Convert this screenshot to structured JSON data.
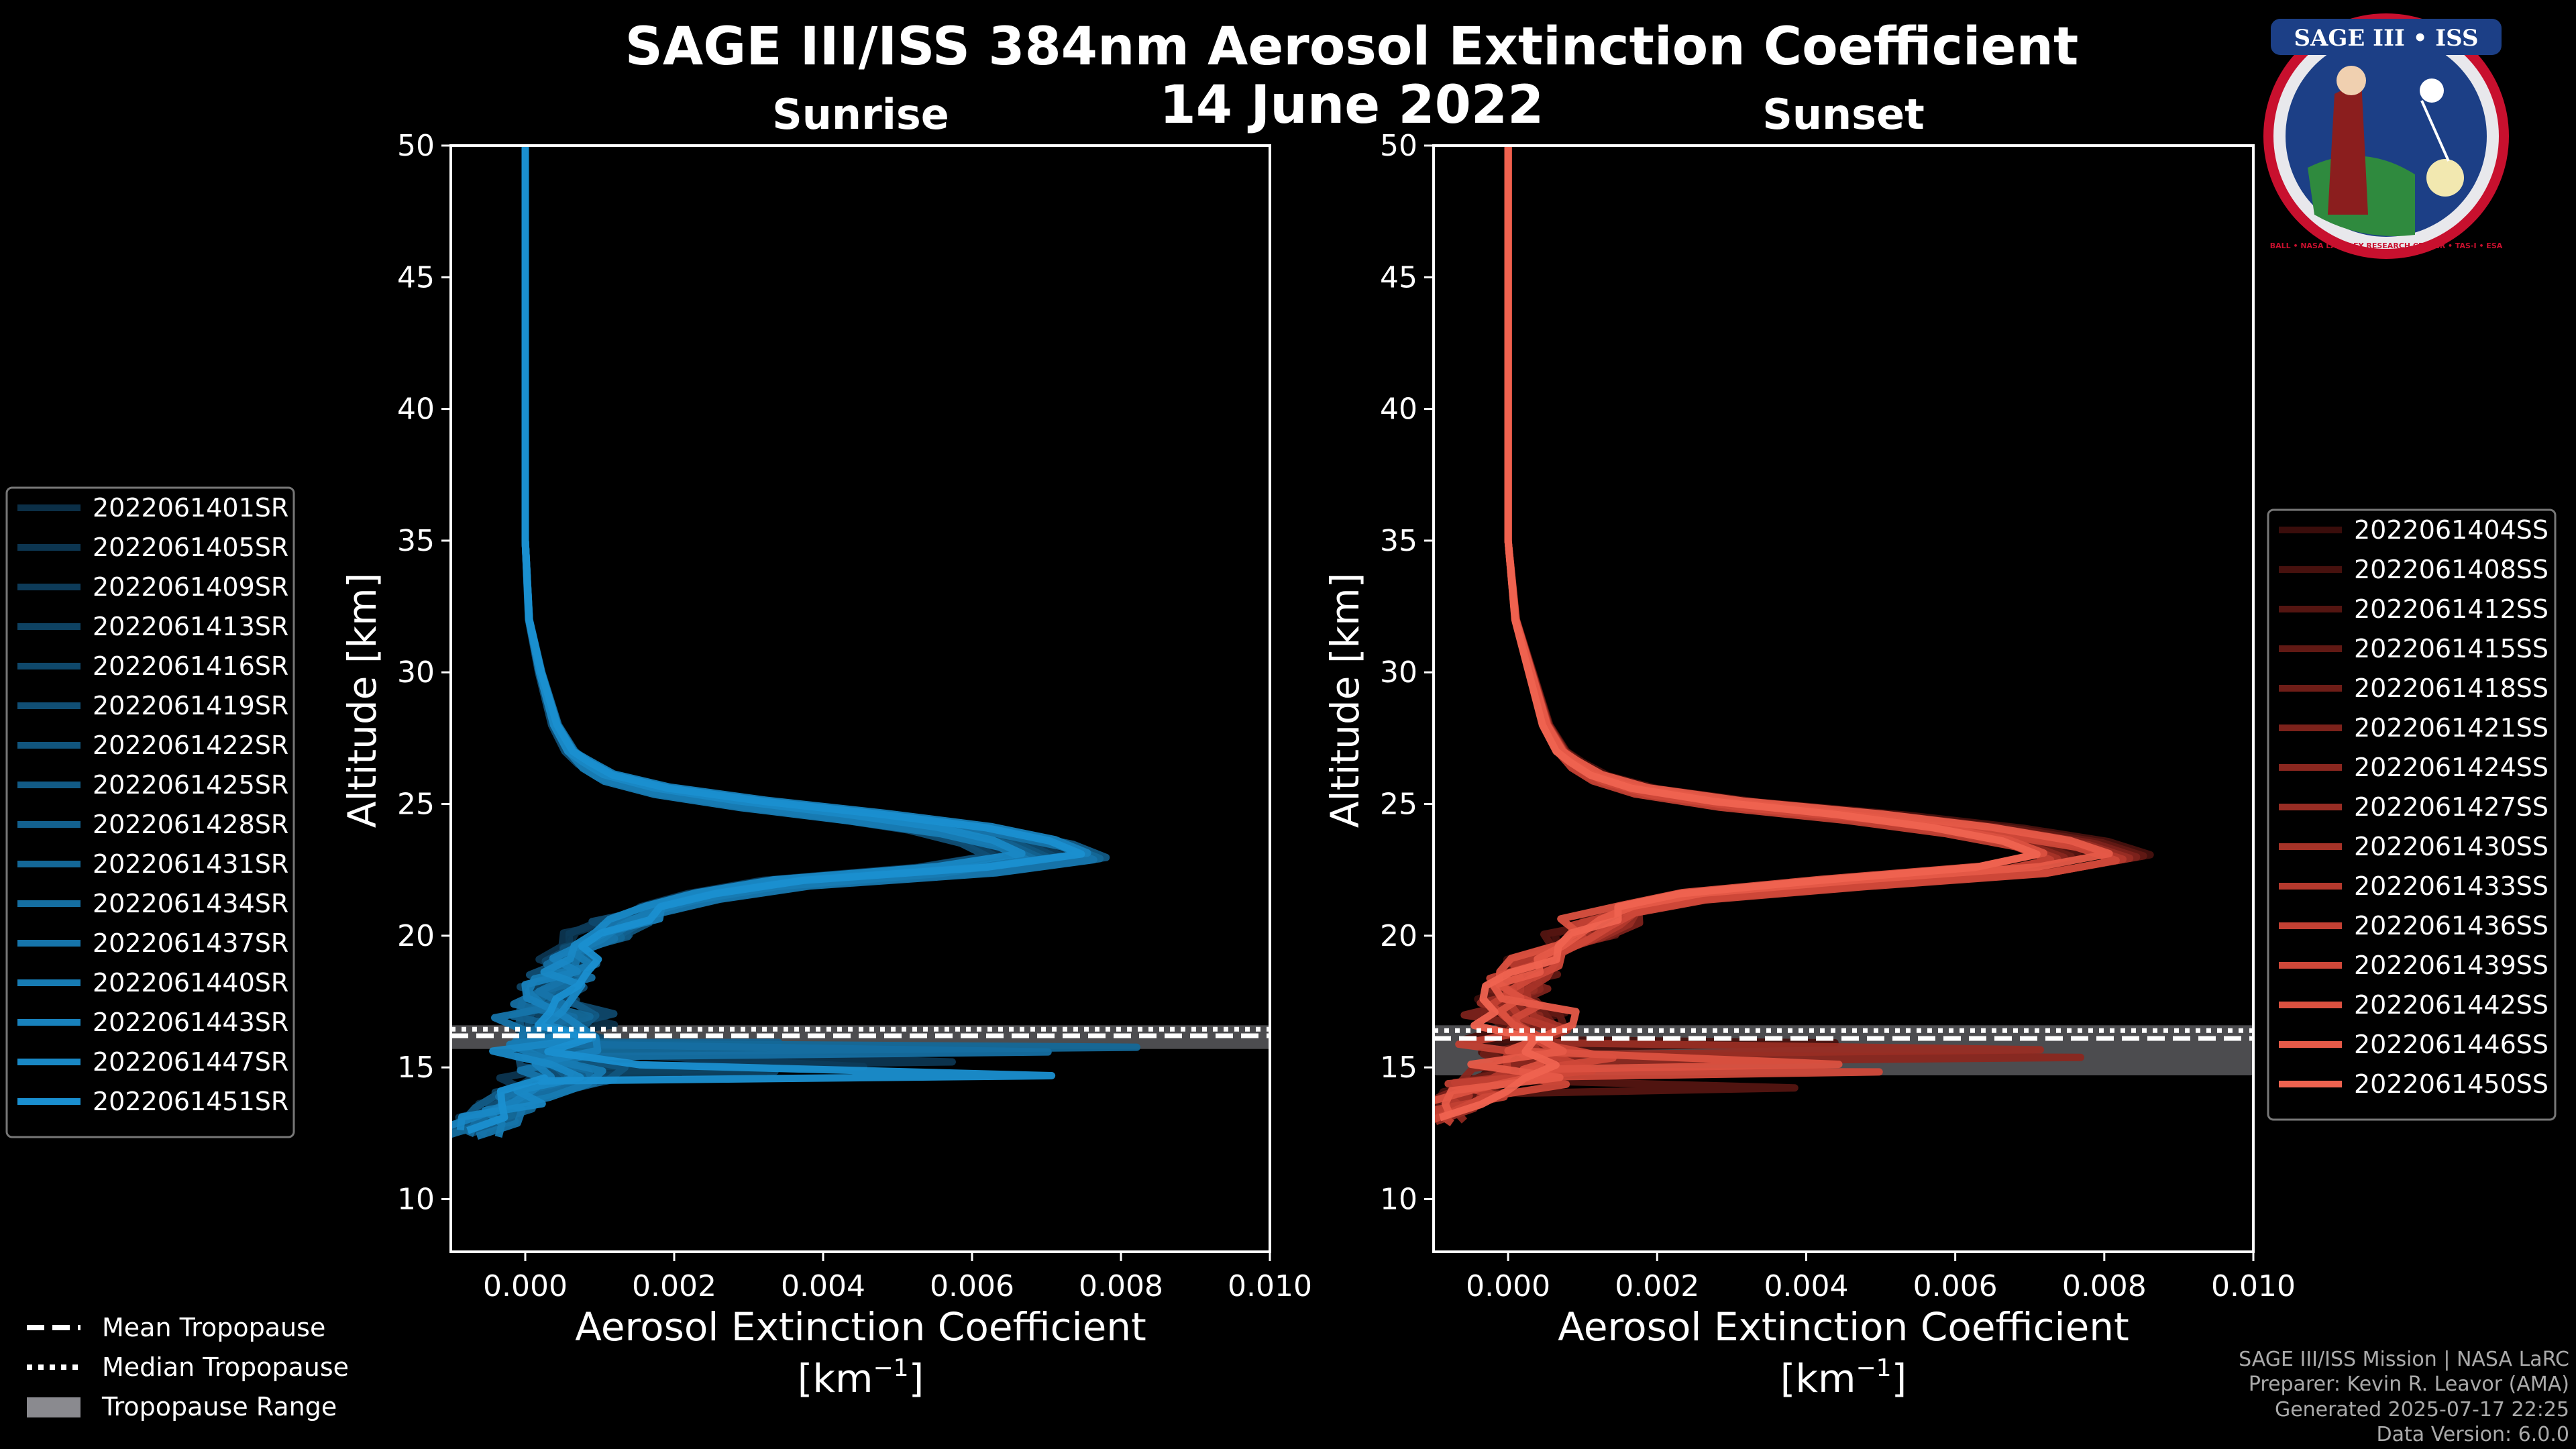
{
  "header": {
    "title": "SAGE III/ISS 384nm Aerosol Extinction Coefficient",
    "date": "14 June 2022"
  },
  "logo": {
    "text": "SAGE III • ISS",
    "ring_text": "BALL • NASA LANGLEY RESEARCH CENTER • TAS-I • ESA"
  },
  "credits": {
    "line1": "SAGE III/ISS Mission | NASA LaRC",
    "line2": "Preparer: Kevin R. Leavor (AMA)",
    "line3": "Generated 2025-07-17 22:25",
    "line4": "Data Version: 6.0.0"
  },
  "tropopause_legend": {
    "mean": "Mean Tropopause",
    "median": "Median Tropopause",
    "range": "Tropopause Range"
  },
  "chart_data": [
    {
      "type": "line",
      "title": "Sunrise",
      "xlabel": "Aerosol Extinction Coefficient",
      "xunit": "[km",
      "xunit_sup": "−1",
      "xunit_close": "]",
      "ylabel": "Altitude [km]",
      "xlim": [
        -0.001,
        0.01
      ],
      "ylim": [
        8,
        50
      ],
      "xticks": [
        0.0,
        0.002,
        0.004,
        0.006,
        0.008,
        0.01
      ],
      "xtick_labels": [
        "0.000",
        "0.002",
        "0.004",
        "0.006",
        "0.008",
        "0.010"
      ],
      "yticks": [
        10,
        15,
        20,
        25,
        30,
        35,
        40,
        45,
        50
      ],
      "tropopause": {
        "mean": 16.2,
        "median": 16.45,
        "range": [
          15.7,
          16.6
        ]
      },
      "base_color": "#1a8fd0",
      "legend_position": "left",
      "series": [
        {
          "name": "2022061401SR",
          "color": "#0b2f47"
        },
        {
          "name": "2022061405SR",
          "color": "#0c3550"
        },
        {
          "name": "2022061409SR",
          "color": "#0d3b59"
        },
        {
          "name": "2022061413SR",
          "color": "#0e4262"
        },
        {
          "name": "2022061416SR",
          "color": "#0f486b"
        },
        {
          "name": "2022061419SR",
          "color": "#104e74"
        },
        {
          "name": "2022061422SR",
          "color": "#11557d"
        },
        {
          "name": "2022061425SR",
          "color": "#125b86"
        },
        {
          "name": "2022061428SR",
          "color": "#13618f"
        },
        {
          "name": "2022061431SR",
          "color": "#146898"
        },
        {
          "name": "2022061434SR",
          "color": "#156ea1"
        },
        {
          "name": "2022061437SR",
          "color": "#1674aa"
        },
        {
          "name": "2022061440SR",
          "color": "#177bb3"
        },
        {
          "name": "2022061443SR",
          "color": "#1881bc"
        },
        {
          "name": "2022061447SR",
          "color": "#1988c5"
        },
        {
          "name": "2022061451SR",
          "color": "#1a8fd0"
        }
      ],
      "profile": {
        "altitude": [
          50,
          45,
          40,
          35,
          32,
          30,
          28,
          27,
          26.5,
          26,
          25.5,
          25,
          24.5,
          24,
          23.5,
          23,
          22.5,
          22,
          21.5,
          21,
          20.5,
          20,
          19.5,
          19,
          18.5,
          18,
          17.5,
          17,
          16.5,
          16,
          15.5,
          15,
          14.5,
          14,
          13.5,
          13,
          12.5
        ],
        "extinction": [
          0.0,
          0.0,
          0.0,
          0.0,
          5e-05,
          0.0002,
          0.0004,
          0.0006,
          0.0008,
          0.0011,
          0.0018,
          0.003,
          0.0045,
          0.0058,
          0.0066,
          0.007,
          0.0058,
          0.0035,
          0.0024,
          0.0017,
          0.0013,
          0.001,
          0.0008,
          0.0006,
          0.0005,
          0.0004,
          0.0003,
          0.0002,
          0.0001,
          0.0,
          0.0002,
          0.0004,
          0.0001,
          0.0,
          -0.0002,
          -0.0005,
          -0.0008
        ]
      }
    },
    {
      "type": "line",
      "title": "Sunset",
      "xlabel": "Aerosol Extinction Coefficient",
      "xunit": "[km",
      "xunit_sup": "−1",
      "xunit_close": "]",
      "ylabel": "Altitude [km]",
      "xlim": [
        -0.001,
        0.01
      ],
      "ylim": [
        8,
        50
      ],
      "xticks": [
        0.0,
        0.002,
        0.004,
        0.006,
        0.008,
        0.01
      ],
      "xtick_labels": [
        "0.000",
        "0.002",
        "0.004",
        "0.006",
        "0.008",
        "0.010"
      ],
      "yticks": [
        10,
        15,
        20,
        25,
        30,
        35,
        40,
        45,
        50
      ],
      "tropopause": {
        "mean": 16.1,
        "median": 16.4,
        "range": [
          14.7,
          16.6
        ]
      },
      "base_color": "#ef6350",
      "legend_position": "right",
      "series": [
        {
          "name": "2022061404SS",
          "color": "#3a0d0b"
        },
        {
          "name": "2022061408SS",
          "color": "#47110e"
        },
        {
          "name": "2022061412SS",
          "color": "#541511"
        },
        {
          "name": "2022061415SS",
          "color": "#611914"
        },
        {
          "name": "2022061418SS",
          "color": "#6e1d17"
        },
        {
          "name": "2022061421SS",
          "color": "#7c221b"
        },
        {
          "name": "2022061424SS",
          "color": "#8a271f"
        },
        {
          "name": "2022061427SS",
          "color": "#982d24"
        },
        {
          "name": "2022061430SS",
          "color": "#a63328"
        },
        {
          "name": "2022061433SS",
          "color": "#b4392d"
        },
        {
          "name": "2022061436SS",
          "color": "#c24033"
        },
        {
          "name": "2022061439SS",
          "color": "#cf4839"
        },
        {
          "name": "2022061442SS",
          "color": "#db5140"
        },
        {
          "name": "2022061446SS",
          "color": "#e65a48"
        },
        {
          "name": "2022061450SS",
          "color": "#ef6350"
        }
      ],
      "profile": {
        "altitude": [
          50,
          45,
          40,
          35,
          32,
          30,
          28,
          27,
          26.5,
          26,
          25.5,
          25,
          24.5,
          24,
          23.5,
          23,
          22.5,
          22,
          21.5,
          21,
          20.5,
          20,
          19.5,
          19,
          18.5,
          18,
          17.5,
          17,
          16.5,
          16,
          15.5,
          15,
          14.5,
          14,
          13.5,
          13
        ],
        "extinction": [
          0.0,
          0.0,
          0.0,
          0.0,
          0.0001,
          0.0003,
          0.0005,
          0.0007,
          0.0009,
          0.0012,
          0.0018,
          0.003,
          0.0048,
          0.0062,
          0.0072,
          0.0077,
          0.0068,
          0.0045,
          0.0025,
          0.0016,
          0.0012,
          0.0009,
          0.0006,
          0.0004,
          0.0002,
          0.0001,
          0.0,
          0.0,
          0.0001,
          0.0,
          0.0002,
          0.0001,
          -0.0002,
          -0.0005,
          -0.0008,
          -0.001
        ]
      }
    }
  ]
}
